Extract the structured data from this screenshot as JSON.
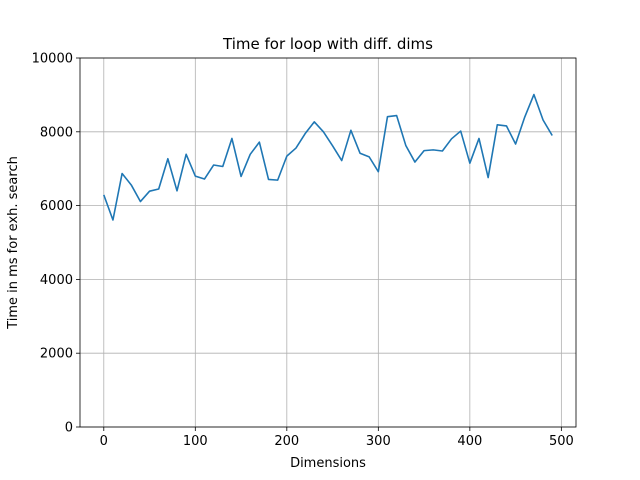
{
  "chart_data": {
    "type": "line",
    "title": "Time for loop with diff. dims",
    "xlabel": "Dimensions",
    "ylabel": "Time in ms for exh. search",
    "xlim": [
      -26,
      516
    ],
    "ylim": [
      0,
      10000
    ],
    "xticks": [
      0,
      100,
      200,
      300,
      400,
      500
    ],
    "yticks": [
      0,
      2000,
      4000,
      6000,
      8000,
      10000
    ],
    "grid": true,
    "line_color": "#1f77b4",
    "series": [
      {
        "x": [
          0,
          10,
          20,
          30,
          40,
          50,
          60,
          70,
          80,
          90,
          100,
          110,
          120,
          130,
          140,
          150,
          160,
          170,
          180,
          190,
          200,
          210,
          220,
          230,
          240,
          250,
          260,
          270,
          280,
          290,
          300,
          310,
          320,
          330,
          340,
          350,
          360,
          370,
          380,
          390,
          400,
          410,
          420,
          430,
          440,
          450,
          460,
          470,
          480,
          490
        ],
        "values": [
          6290,
          5610,
          6870,
          6560,
          6110,
          6390,
          6450,
          7270,
          6400,
          7390,
          6800,
          6720,
          7100,
          7060,
          7820,
          6790,
          7390,
          7720,
          6710,
          6690,
          7340,
          7560,
          7950,
          8270,
          8000,
          7620,
          7220,
          8040,
          7420,
          7320,
          6920,
          8410,
          8440,
          7630,
          7180,
          7490,
          7510,
          7480,
          7810,
          8020,
          7150,
          7820,
          6760,
          8190,
          8160,
          7670,
          8400,
          9010,
          8320,
          7900
        ]
      }
    ]
  }
}
